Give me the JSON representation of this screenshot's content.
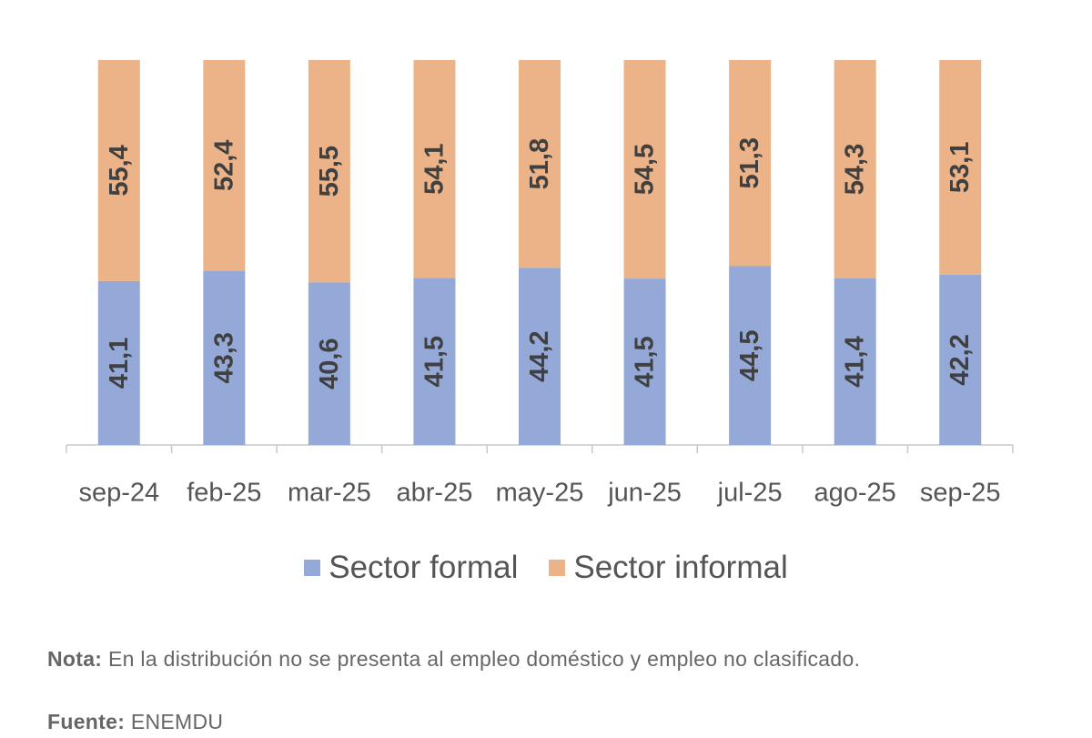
{
  "chart_data": {
    "type": "bar",
    "stacked": true,
    "normalized": true,
    "categories": [
      "sep-24",
      "feb-25",
      "mar-25",
      "abr-25",
      "may-25",
      "jun-25",
      "jul-25",
      "ago-25",
      "sep-25"
    ],
    "series": [
      {
        "name": "Sector formal",
        "color": "#95A9D9",
        "values": [
          41.1,
          43.3,
          40.6,
          41.5,
          44.2,
          41.5,
          44.5,
          41.4,
          42.2
        ]
      },
      {
        "name": "Sector informal",
        "color": "#EBB387",
        "values": [
          55.4,
          52.4,
          55.5,
          54.1,
          51.8,
          54.5,
          51.3,
          54.3,
          53.1
        ]
      }
    ],
    "data_label_format": "comma-decimal",
    "data_label_color": "#404040",
    "axis_color": "#c8c8c8",
    "legend_position": "bottom",
    "grid": false
  },
  "legend": {
    "formal_label": "Sector formal",
    "informal_label": "Sector informal"
  },
  "note": {
    "label": "Nota:",
    "text": "En la distribución no se presenta al empleo doméstico y empleo no clasificado."
  },
  "source": {
    "label": "Fuente:",
    "text": "ENEMDU"
  }
}
